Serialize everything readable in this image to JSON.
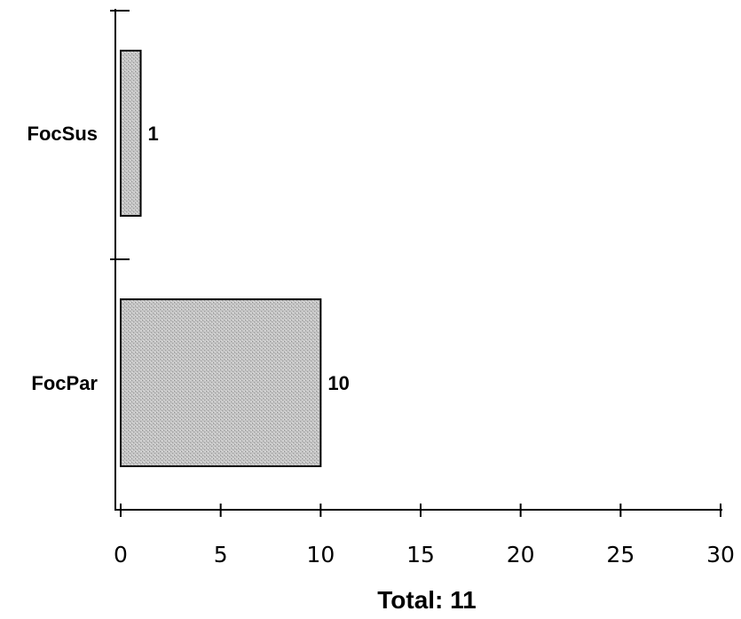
{
  "chart_data": {
    "type": "bar",
    "orientation": "horizontal",
    "categories": [
      "FocSus",
      "FocPar"
    ],
    "values": [
      1,
      10
    ],
    "data_labels": [
      "1",
      "10"
    ],
    "xlim": [
      0,
      30
    ],
    "x_ticks": [
      0,
      5,
      10,
      15,
      20,
      25,
      30
    ],
    "x_tick_labels": [
      "0",
      "5",
      "10",
      "15",
      "20",
      "25",
      "30"
    ],
    "xlabel": "Total: 11",
    "ylabel": "",
    "title": "",
    "grid": false,
    "legend": "none",
    "bar_color": "#bdbdbd"
  }
}
